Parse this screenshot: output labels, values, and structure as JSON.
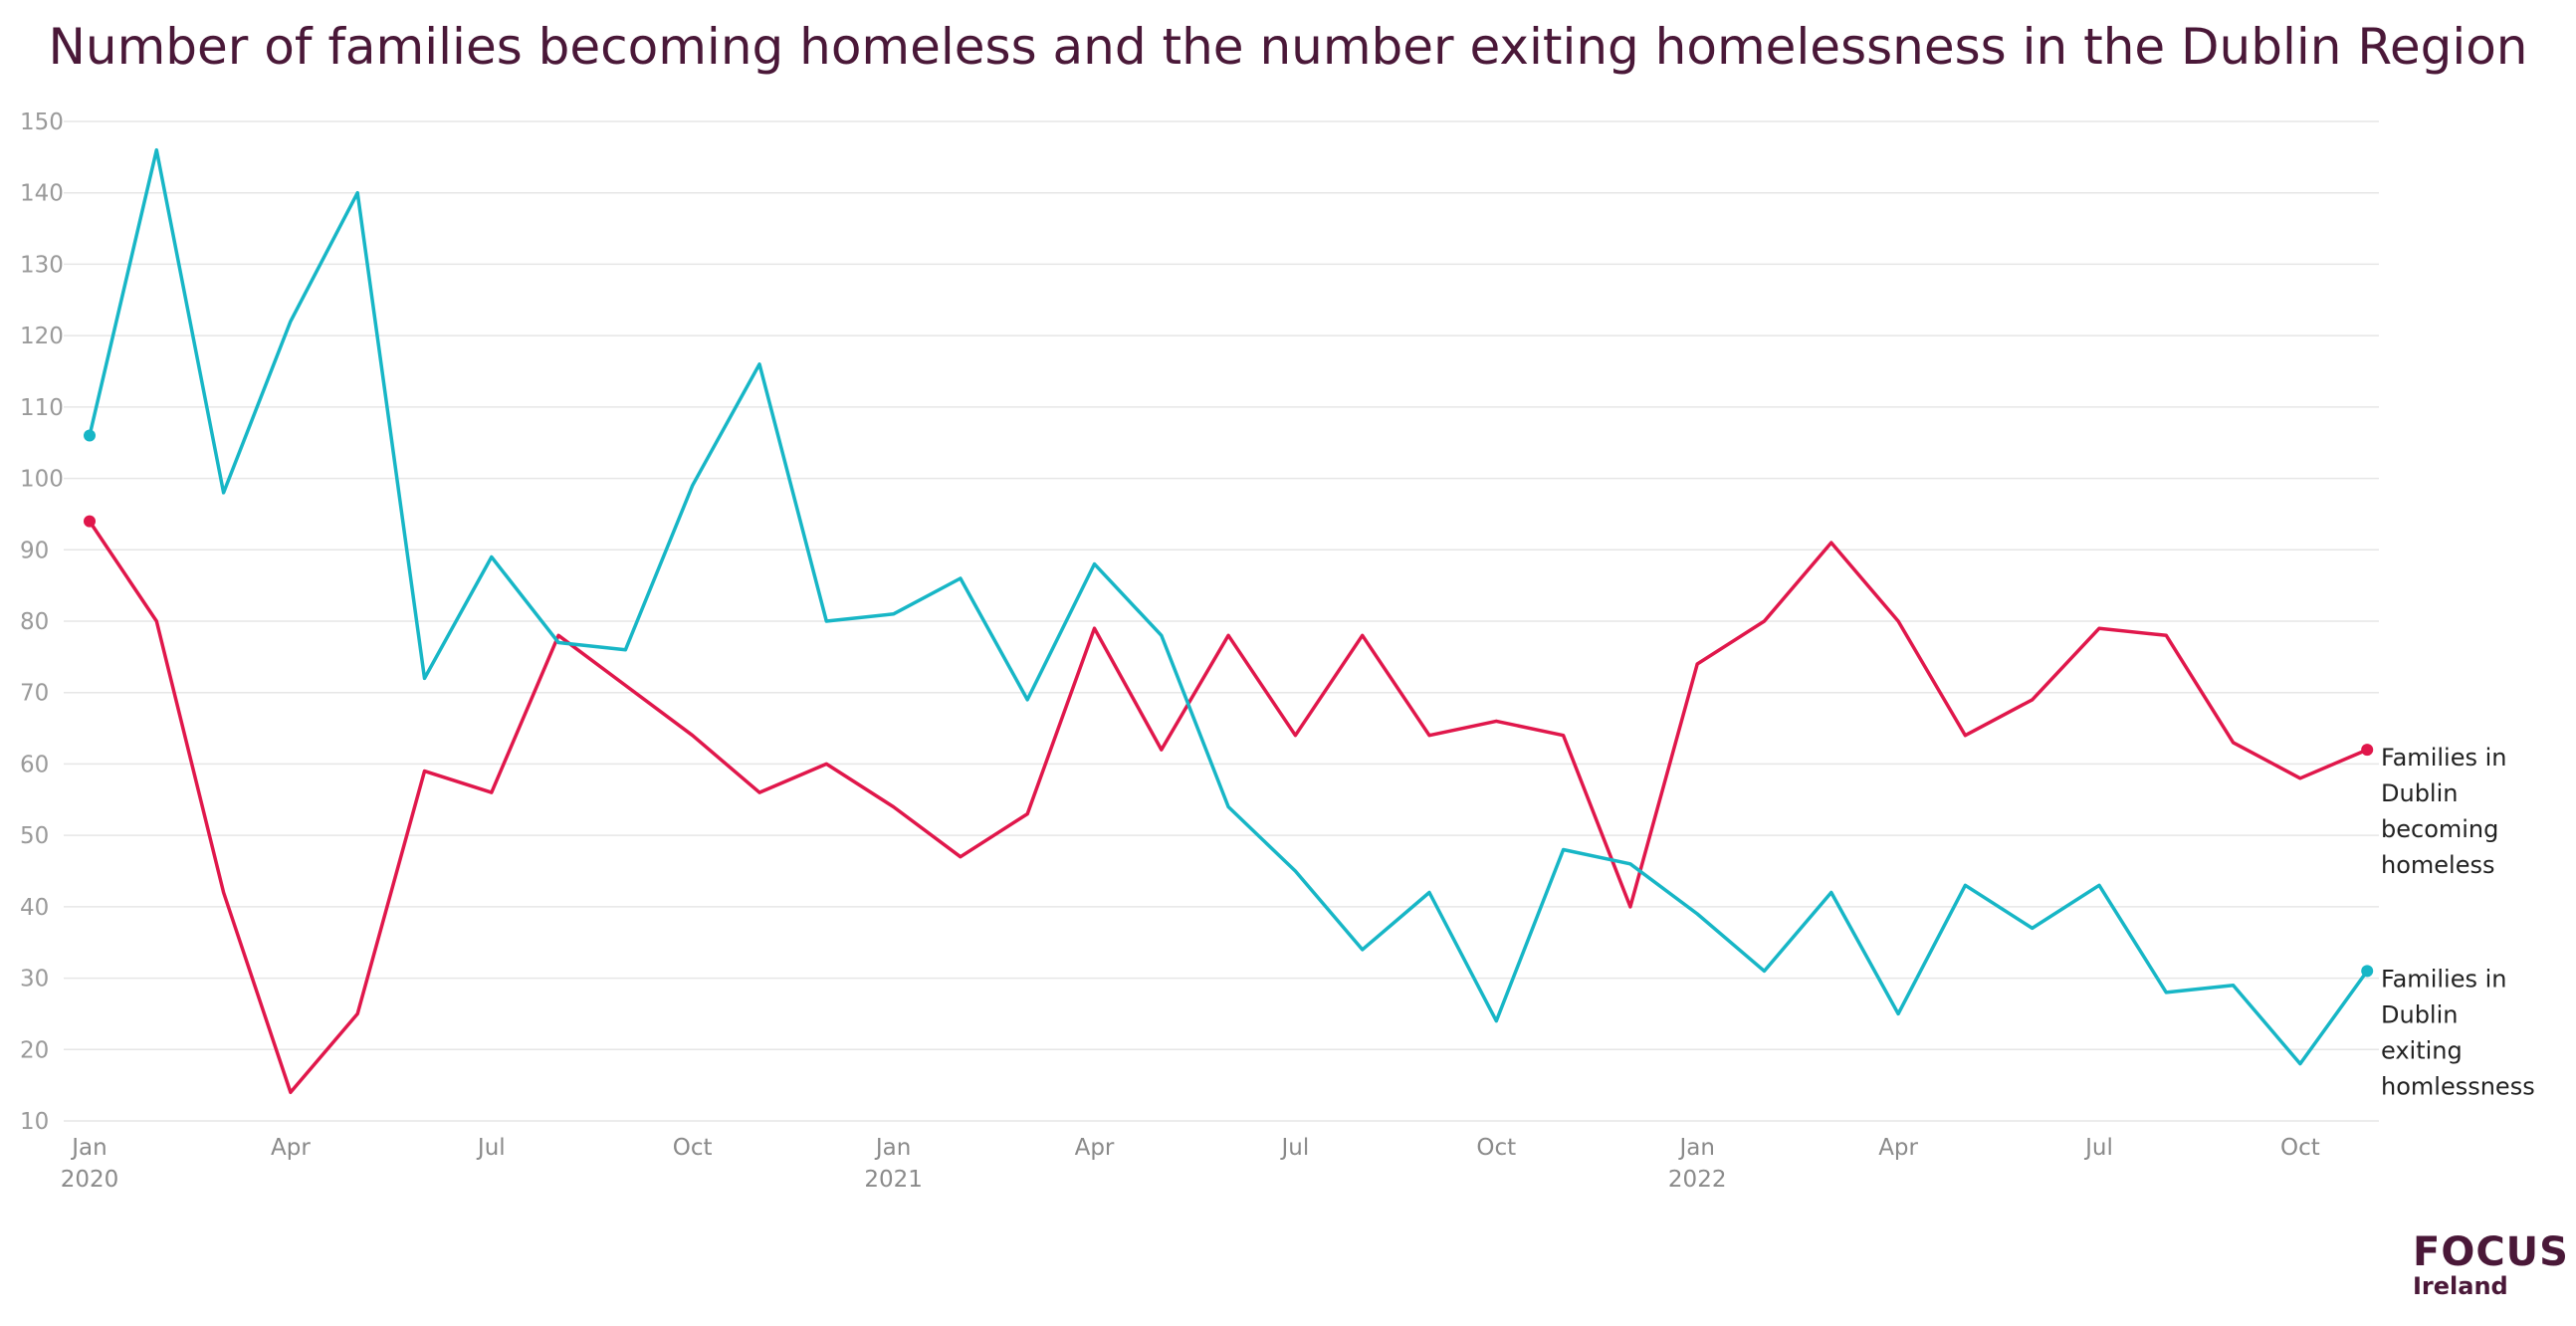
{
  "chart_data": {
    "type": "line",
    "title": "Number of families becoming homeless and the number exiting homelessness in the Dublin Region",
    "ylim": [
      10,
      150
    ],
    "yticks": [
      10,
      20,
      30,
      40,
      50,
      60,
      70,
      80,
      90,
      100,
      110,
      120,
      130,
      140,
      150
    ],
    "grid": true,
    "legend": "end-of-line labels (right)",
    "x": [
      "2020-01",
      "2020-02",
      "2020-03",
      "2020-04",
      "2020-05",
      "2020-06",
      "2020-07",
      "2020-08",
      "2020-09",
      "2020-10",
      "2020-11",
      "2020-12",
      "2021-01",
      "2021-02",
      "2021-03",
      "2021-04",
      "2021-05",
      "2021-06",
      "2021-07",
      "2021-08",
      "2021-09",
      "2021-10",
      "2021-11",
      "2021-12",
      "2022-01",
      "2022-02",
      "2022-03",
      "2022-04",
      "2022-05",
      "2022-06",
      "2022-07",
      "2022-08",
      "2022-09",
      "2022-10",
      "2022-11"
    ],
    "xticks": [
      {
        "month": "Jan",
        "year": "2020"
      },
      {
        "month": "Apr",
        "year": ""
      },
      {
        "month": "Jul",
        "year": ""
      },
      {
        "month": "Oct",
        "year": ""
      },
      {
        "month": "Jan",
        "year": "2021"
      },
      {
        "month": "Apr",
        "year": ""
      },
      {
        "month": "Jul",
        "year": ""
      },
      {
        "month": "Oct",
        "year": ""
      },
      {
        "month": "Jan",
        "year": "2022"
      },
      {
        "month": "Apr",
        "year": ""
      },
      {
        "month": "Jul",
        "year": ""
      },
      {
        "month": "Oct",
        "year": ""
      }
    ],
    "series": [
      {
        "name": "Families in Dublin becoming homeless",
        "label_lines": [
          "Families in",
          "Dublin",
          "becoming",
          "homeless"
        ],
        "color": "#e0174b",
        "values": [
          94,
          80,
          42,
          14,
          25,
          59,
          56,
          78,
          71,
          64,
          56,
          60,
          54,
          47,
          53,
          79,
          62,
          78,
          64,
          78,
          64,
          66,
          64,
          40,
          74,
          80,
          91,
          80,
          64,
          69,
          79,
          78,
          63,
          58,
          62
        ]
      },
      {
        "name": "Families in Dublin exiting homlessness",
        "label_lines": [
          "Families in",
          "Dublin",
          "exiting",
          "homlessness"
        ],
        "color": "#17b6c6",
        "values": [
          106,
          146,
          98,
          122,
          140,
          72,
          89,
          77,
          76,
          99,
          116,
          80,
          81,
          86,
          69,
          88,
          78,
          54,
          45,
          34,
          42,
          24,
          48,
          46,
          39,
          31,
          42,
          25,
          43,
          37,
          43,
          28,
          29,
          18,
          31
        ]
      }
    ]
  },
  "logo": {
    "word": "FOCUS",
    "sub": "Ireland",
    "color": "#4a1838"
  }
}
